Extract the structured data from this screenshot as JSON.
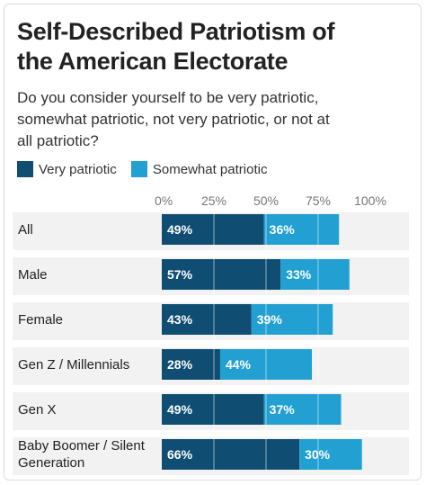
{
  "title_line1": "Self-Described Patriotism of",
  "title_line2": "the American Electorate",
  "subtitle_line1": "Do you consider yourself to be very patriotic,",
  "subtitle_line2": "somewhat patriotic, not very patriotic, or not at",
  "subtitle_line3": "all patriotic?",
  "colors": {
    "very": "#0f4d73",
    "somewhat": "#22a0d2"
  },
  "chart_data": {
    "type": "bar",
    "orientation": "horizontal",
    "stacked": true,
    "title": "Self-Described Patriotism of the American Electorate",
    "categories": [
      "All",
      "Male",
      "Female",
      "Gen Z / Millennials",
      "Gen X",
      "Baby Boomer / Silent Generation"
    ],
    "category_lines": [
      [
        "All"
      ],
      [
        "Male"
      ],
      [
        "Female"
      ],
      [
        "Gen Z / Millennials"
      ],
      [
        "Gen X"
      ],
      [
        "Baby Boomer / Silent",
        "Generation"
      ]
    ],
    "series": [
      {
        "name": "Very patriotic",
        "values": [
          49,
          57,
          43,
          28,
          49,
          66
        ]
      },
      {
        "name": "Somewhat patriotic",
        "values": [
          36,
          33,
          39,
          44,
          37,
          30
        ]
      }
    ],
    "xlim": [
      0,
      100
    ],
    "ticks": [
      "0%",
      "25%",
      "50%",
      "75%",
      "100%"
    ],
    "tick_values": [
      0,
      25,
      50,
      75,
      100
    ],
    "legend": "top-left"
  }
}
